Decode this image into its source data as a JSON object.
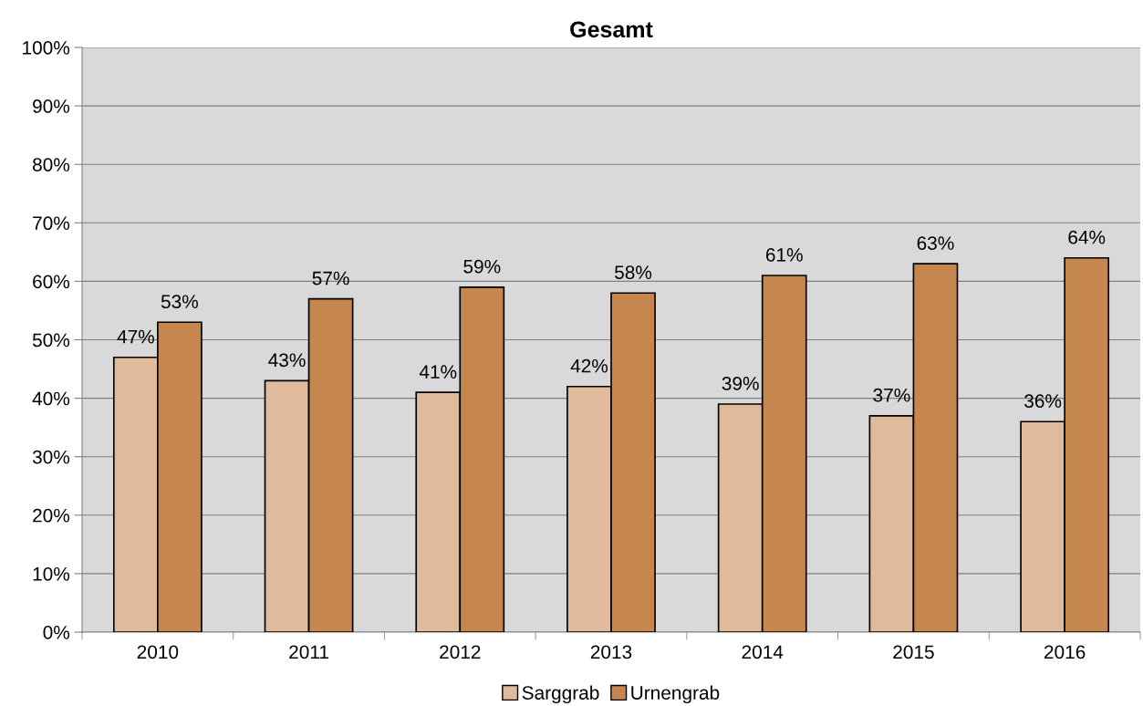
{
  "chart_data": {
    "type": "bar",
    "title": "Gesamt",
    "categories": [
      "2010",
      "2011",
      "2012",
      "2013",
      "2014",
      "2015",
      "2016"
    ],
    "series": [
      {
        "name": "Sarggrab",
        "color": "#dfba9b",
        "values": [
          47,
          43,
          41,
          42,
          39,
          37,
          36
        ],
        "value_labels": [
          "47%",
          "43%",
          "41%",
          "42%",
          "39%",
          "37%",
          "36%"
        ]
      },
      {
        "name": "Urnengrab",
        "color": "#c5874e",
        "values": [
          53,
          57,
          59,
          58,
          61,
          63,
          64
        ],
        "value_labels": [
          "53%",
          "57%",
          "59%",
          "58%",
          "61%",
          "63%",
          "64%"
        ]
      }
    ],
    "ylim": [
      0,
      100
    ],
    "yticks": [
      {
        "value": 0,
        "label": "0%"
      },
      {
        "value": 10,
        "label": "10%"
      },
      {
        "value": 20,
        "label": "20%"
      },
      {
        "value": 30,
        "label": "30%"
      },
      {
        "value": 40,
        "label": "40%"
      },
      {
        "value": 50,
        "label": "50%"
      },
      {
        "value": 60,
        "label": "60%"
      },
      {
        "value": 70,
        "label": "70%"
      },
      {
        "value": 80,
        "label": "80%"
      },
      {
        "value": 90,
        "label": "90%"
      },
      {
        "value": 100,
        "label": "100%"
      }
    ],
    "grid": "y",
    "legend": "bottom"
  }
}
